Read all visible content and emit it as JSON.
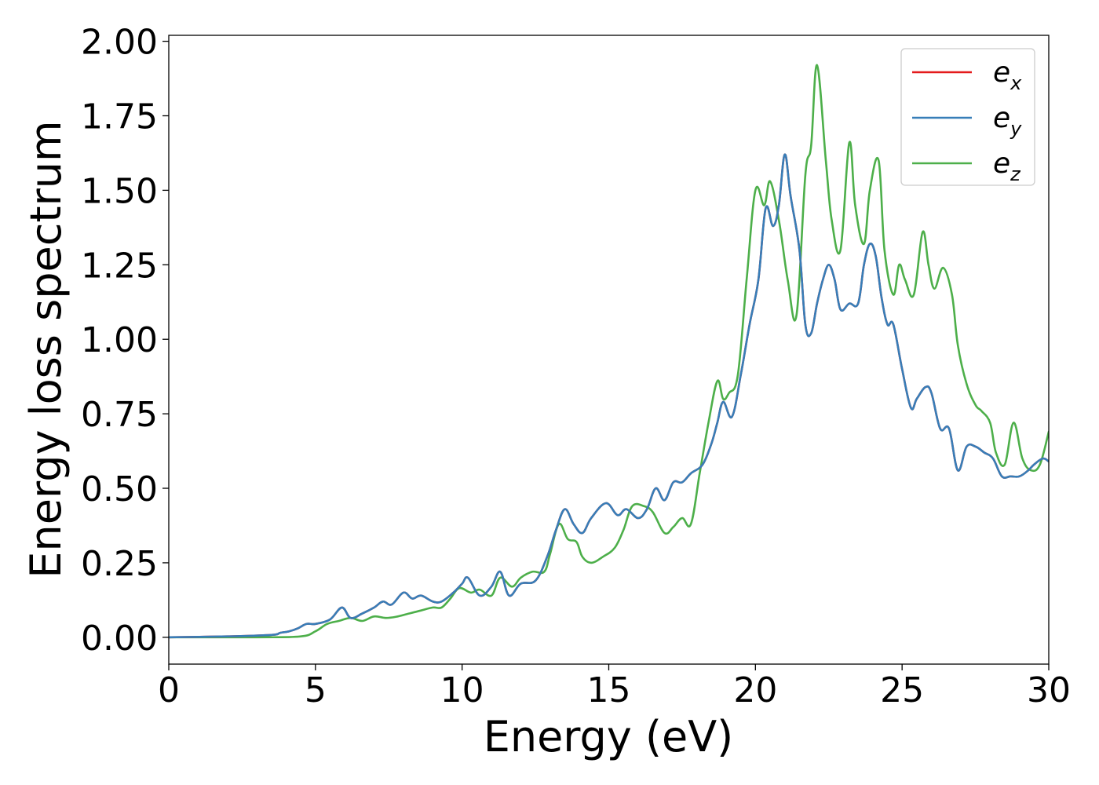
{
  "chart_data": {
    "type": "line",
    "title": "",
    "xlabel": "Energy (eV)",
    "ylabel": "Energy loss spectrum",
    "xlim": [
      0,
      30
    ],
    "ylim": [
      -0.09,
      2.02
    ],
    "xticks": [
      0,
      5,
      10,
      15,
      20,
      25,
      30
    ],
    "xtick_labels": [
      "0",
      "5",
      "10",
      "15",
      "20",
      "25",
      "30"
    ],
    "yticks": [
      0.0,
      0.25,
      0.5,
      0.75,
      1.0,
      1.25,
      1.5,
      1.75,
      2.0
    ],
    "ytick_labels": [
      "0.00",
      "0.25",
      "0.50",
      "0.75",
      "1.00",
      "1.25",
      "1.50",
      "1.75",
      "2.00"
    ],
    "grid": false,
    "legend_position": "top-right",
    "series": [
      {
        "name": "e",
        "subscript": "x",
        "color": "#e41a1c",
        "x": [
          0,
          2,
          3.5,
          3.8,
          4.1,
          4.4,
          4.7,
          5.0,
          5.5,
          5.9,
          6.2,
          6.6,
          7.0,
          7.3,
          7.6,
          8.0,
          8.3,
          8.6,
          9.0,
          9.3,
          9.7,
          10.0,
          10.2,
          10.6,
          11.0,
          11.3,
          11.6,
          12.0,
          12.5,
          12.9,
          13.2,
          13.5,
          13.8,
          14.1,
          14.4,
          14.9,
          15.3,
          15.6,
          16.0,
          16.3,
          16.6,
          16.9,
          17.2,
          17.5,
          17.8,
          18.2,
          18.5,
          18.7,
          18.9,
          19.2,
          19.5,
          19.8,
          20.1,
          20.35,
          20.6,
          20.8,
          21.0,
          21.2,
          21.5,
          21.7,
          21.9,
          22.1,
          22.3,
          22.5,
          22.7,
          22.9,
          23.2,
          23.5,
          23.7,
          23.9,
          24.1,
          24.3,
          24.5,
          24.7,
          25.0,
          25.3,
          25.5,
          25.8,
          26.0,
          26.3,
          26.6,
          26.9,
          27.2,
          27.5,
          27.8,
          28.1,
          28.4,
          28.7,
          29.0,
          29.3,
          29.5,
          29.8,
          30.0
        ],
        "y": [
          0.0,
          0.003,
          0.008,
          0.015,
          0.02,
          0.03,
          0.045,
          0.045,
          0.06,
          0.1,
          0.065,
          0.08,
          0.1,
          0.12,
          0.11,
          0.15,
          0.13,
          0.14,
          0.12,
          0.12,
          0.15,
          0.18,
          0.2,
          0.14,
          0.17,
          0.22,
          0.14,
          0.18,
          0.19,
          0.27,
          0.36,
          0.43,
          0.38,
          0.35,
          0.4,
          0.45,
          0.41,
          0.43,
          0.4,
          0.43,
          0.5,
          0.46,
          0.52,
          0.52,
          0.55,
          0.58,
          0.65,
          0.72,
          0.79,
          0.74,
          0.88,
          1.05,
          1.2,
          1.44,
          1.38,
          1.45,
          1.62,
          1.48,
          1.3,
          1.05,
          1.02,
          1.12,
          1.2,
          1.25,
          1.2,
          1.1,
          1.12,
          1.12,
          1.25,
          1.32,
          1.28,
          1.14,
          1.05,
          1.05,
          0.9,
          0.77,
          0.8,
          0.84,
          0.82,
          0.7,
          0.7,
          0.56,
          0.64,
          0.64,
          0.62,
          0.6,
          0.54,
          0.54,
          0.54,
          0.56,
          0.58,
          0.6,
          0.59
        ]
      },
      {
        "name": "e",
        "subscript": "y",
        "color": "#377eb8",
        "x": [
          0,
          2,
          3.5,
          3.8,
          4.1,
          4.4,
          4.7,
          5.0,
          5.5,
          5.9,
          6.2,
          6.6,
          7.0,
          7.3,
          7.6,
          8.0,
          8.3,
          8.6,
          9.0,
          9.3,
          9.7,
          10.0,
          10.2,
          10.6,
          11.0,
          11.3,
          11.6,
          12.0,
          12.5,
          12.9,
          13.2,
          13.5,
          13.8,
          14.1,
          14.4,
          14.9,
          15.3,
          15.6,
          16.0,
          16.3,
          16.6,
          16.9,
          17.2,
          17.5,
          17.8,
          18.2,
          18.5,
          18.7,
          18.9,
          19.2,
          19.5,
          19.8,
          20.1,
          20.35,
          20.6,
          20.8,
          21.0,
          21.2,
          21.5,
          21.7,
          21.9,
          22.1,
          22.3,
          22.5,
          22.7,
          22.9,
          23.2,
          23.5,
          23.7,
          23.9,
          24.1,
          24.3,
          24.5,
          24.7,
          25.0,
          25.3,
          25.5,
          25.8,
          26.0,
          26.3,
          26.6,
          26.9,
          27.2,
          27.5,
          27.8,
          28.1,
          28.4,
          28.7,
          29.0,
          29.3,
          29.5,
          29.8,
          30.0
        ],
        "y": [
          0.0,
          0.003,
          0.008,
          0.015,
          0.02,
          0.03,
          0.045,
          0.045,
          0.06,
          0.1,
          0.065,
          0.08,
          0.1,
          0.12,
          0.11,
          0.15,
          0.13,
          0.14,
          0.12,
          0.12,
          0.15,
          0.18,
          0.2,
          0.14,
          0.17,
          0.22,
          0.14,
          0.18,
          0.19,
          0.27,
          0.36,
          0.43,
          0.38,
          0.35,
          0.4,
          0.45,
          0.41,
          0.43,
          0.4,
          0.43,
          0.5,
          0.46,
          0.52,
          0.52,
          0.55,
          0.58,
          0.65,
          0.72,
          0.79,
          0.74,
          0.88,
          1.05,
          1.2,
          1.44,
          1.38,
          1.45,
          1.62,
          1.48,
          1.3,
          1.05,
          1.02,
          1.12,
          1.2,
          1.25,
          1.2,
          1.1,
          1.12,
          1.12,
          1.25,
          1.32,
          1.28,
          1.14,
          1.05,
          1.05,
          0.9,
          0.77,
          0.8,
          0.84,
          0.82,
          0.7,
          0.7,
          0.56,
          0.64,
          0.64,
          0.62,
          0.6,
          0.54,
          0.54,
          0.54,
          0.56,
          0.58,
          0.6,
          0.59
        ]
      },
      {
        "name": "e",
        "subscript": "z",
        "color": "#4daf4a",
        "x": [
          0,
          3,
          4.5,
          5.0,
          5.4,
          5.8,
          6.2,
          6.6,
          7.0,
          7.4,
          7.8,
          8.2,
          8.6,
          9.0,
          9.3,
          9.6,
          9.9,
          10.3,
          10.6,
          11.0,
          11.3,
          11.7,
          12.0,
          12.4,
          12.8,
          13.0,
          13.3,
          13.6,
          13.9,
          14.1,
          14.4,
          14.8,
          15.2,
          15.5,
          15.8,
          16.2,
          16.5,
          16.9,
          17.2,
          17.5,
          17.8,
          18.1,
          18.4,
          18.7,
          18.9,
          19.1,
          19.4,
          19.7,
          20.0,
          20.3,
          20.5,
          20.8,
          21.1,
          21.4,
          21.7,
          21.9,
          22.1,
          22.4,
          22.6,
          22.9,
          23.2,
          23.4,
          23.7,
          23.9,
          24.2,
          24.4,
          24.7,
          24.9,
          25.1,
          25.4,
          25.7,
          25.9,
          26.1,
          26.4,
          26.7,
          26.9,
          27.2,
          27.5,
          27.7,
          28.0,
          28.2,
          28.5,
          28.8,
          29.1,
          29.4,
          29.7,
          30.0
        ],
        "y": [
          0.0,
          0.0,
          0.003,
          0.02,
          0.045,
          0.055,
          0.065,
          0.055,
          0.07,
          0.065,
          0.07,
          0.08,
          0.09,
          0.1,
          0.1,
          0.13,
          0.165,
          0.15,
          0.16,
          0.14,
          0.2,
          0.17,
          0.2,
          0.22,
          0.22,
          0.28,
          0.38,
          0.33,
          0.32,
          0.27,
          0.25,
          0.27,
          0.3,
          0.36,
          0.44,
          0.44,
          0.42,
          0.35,
          0.37,
          0.4,
          0.38,
          0.55,
          0.72,
          0.86,
          0.8,
          0.82,
          0.88,
          1.2,
          1.5,
          1.45,
          1.53,
          1.4,
          1.2,
          1.08,
          1.55,
          1.65,
          1.92,
          1.6,
          1.4,
          1.3,
          1.66,
          1.45,
          1.32,
          1.5,
          1.6,
          1.3,
          1.15,
          1.25,
          1.2,
          1.15,
          1.36,
          1.25,
          1.17,
          1.24,
          1.15,
          0.98,
          0.85,
          0.78,
          0.76,
          0.72,
          0.62,
          0.58,
          0.72,
          0.6,
          0.56,
          0.58,
          0.69
        ]
      }
    ]
  }
}
